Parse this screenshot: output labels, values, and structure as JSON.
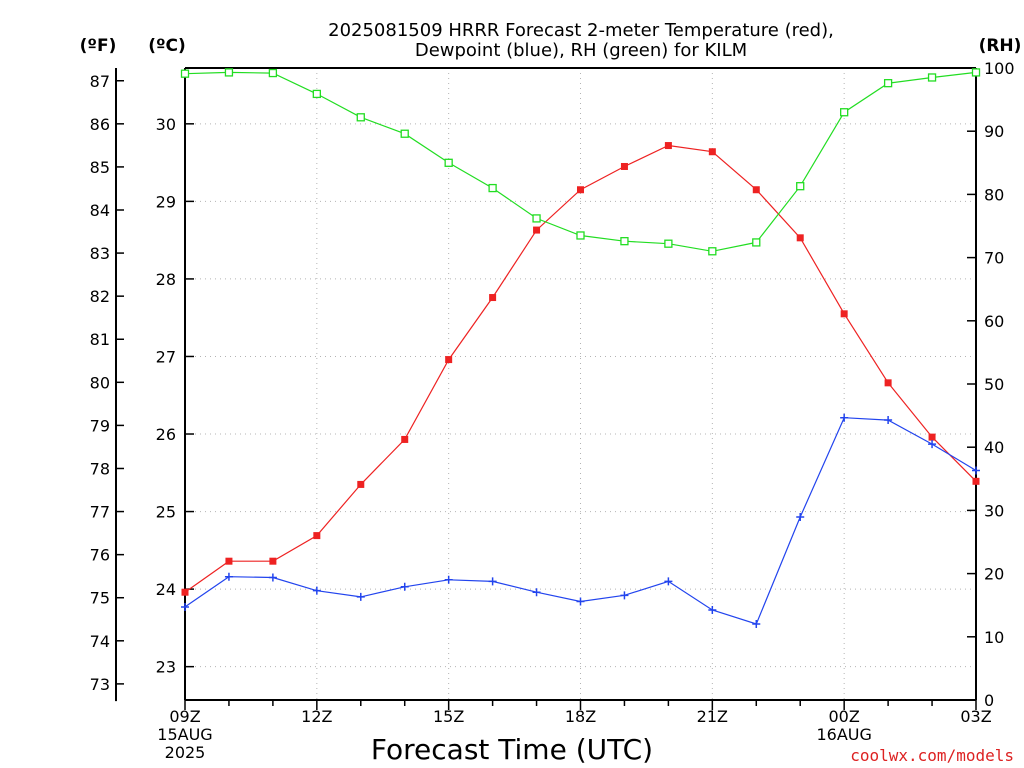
{
  "chart_data": {
    "type": "line",
    "title_lines": [
      "2025081509 HRRR Forecast 2-meter Temperature (red),",
      "Dewpoint (blue), RH (green) for KILM"
    ],
    "xlabel": "Forecast Time (UTC)",
    "credit": "coolwx.com/models",
    "unit_labels": {
      "fahrenheit": "(ºF)",
      "celsius": "(ºC)",
      "rh": "(RH)"
    },
    "x": [
      "09Z",
      "10Z",
      "11Z",
      "12Z",
      "13Z",
      "14Z",
      "15Z",
      "16Z",
      "17Z",
      "18Z",
      "19Z",
      "20Z",
      "21Z",
      "22Z",
      "23Z",
      "00Z",
      "01Z",
      "02Z",
      "03Z"
    ],
    "x_ticks": [
      {
        "index": 0,
        "label": "09Z",
        "date": "15AUG",
        "year": "2025"
      },
      {
        "index": 3,
        "label": "12Z"
      },
      {
        "index": 6,
        "label": "15Z"
      },
      {
        "index": 9,
        "label": "18Z"
      },
      {
        "index": 12,
        "label": "21Z"
      },
      {
        "index": 15,
        "label": "00Z",
        "date": "16AUG"
      },
      {
        "index": 18,
        "label": "03Z"
      }
    ],
    "axes": {
      "celsius_range": [
        22.57,
        30.72
      ],
      "celsius_ticks": [
        23,
        24,
        25,
        26,
        27,
        28,
        29,
        30
      ],
      "fahrenheit_ticks": [
        73,
        74,
        75,
        76,
        77,
        78,
        79,
        80,
        81,
        82,
        83,
        84,
        85,
        86,
        87
      ],
      "rh_range": [
        0,
        100
      ],
      "rh_ticks": [
        0,
        10,
        20,
        30,
        40,
        50,
        60,
        70,
        80,
        90,
        100
      ]
    },
    "series": [
      {
        "name": "Temperature",
        "unit": "°C",
        "color": "#ee2222",
        "marker": "filled-square",
        "values": [
          23.96,
          24.36,
          24.36,
          24.69,
          25.35,
          25.93,
          26.96,
          27.76,
          28.63,
          29.15,
          29.45,
          29.72,
          29.64,
          29.15,
          28.53,
          27.55,
          26.66,
          25.96,
          25.39
        ]
      },
      {
        "name": "Dewpoint",
        "unit": "°C",
        "color": "#2244ee",
        "marker": "plus",
        "values": [
          23.77,
          24.16,
          24.15,
          23.98,
          23.9,
          24.03,
          24.12,
          24.1,
          23.96,
          23.84,
          23.92,
          24.1,
          23.73,
          23.55,
          24.93,
          26.21,
          26.18,
          25.87,
          25.53
        ]
      },
      {
        "name": "RH",
        "unit": "%",
        "color": "#22dd22",
        "marker": "open-square",
        "values": [
          99.1,
          99.3,
          99.2,
          95.9,
          92.2,
          89.6,
          85.0,
          81.0,
          76.2,
          73.5,
          72.6,
          72.2,
          71.0,
          72.4,
          81.3,
          93.0,
          97.6,
          98.5,
          99.3
        ]
      }
    ]
  }
}
